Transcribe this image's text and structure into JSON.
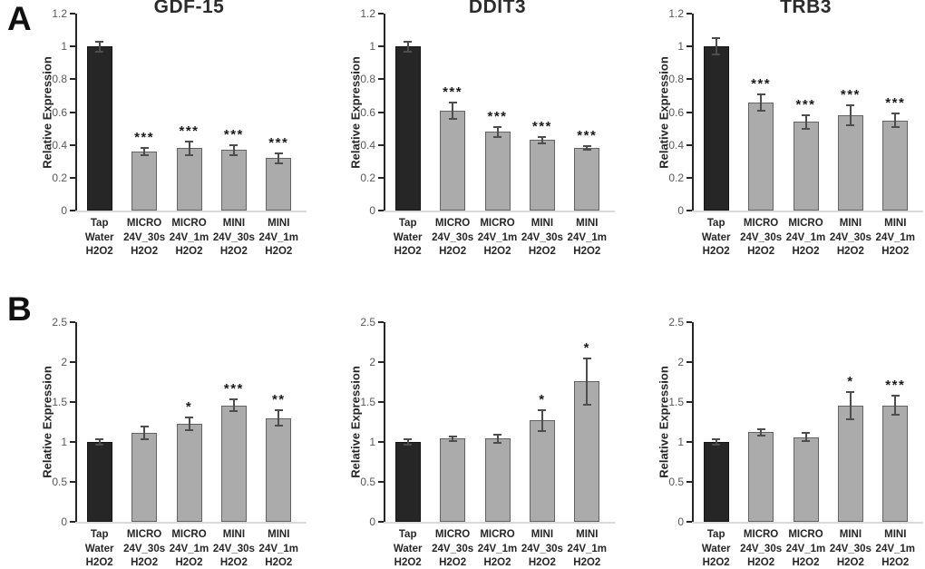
{
  "figure": {
    "panels": [
      {
        "label": "A"
      },
      {
        "label": "B"
      }
    ]
  },
  "styles": {
    "control_bar_color": "#262626",
    "treatment_bar_color": "#ababab",
    "treatment_bar_border": "#636363",
    "error_bar_color": "#4d4d4d",
    "axis_color": "#262626",
    "baseline_color": "#d9d9d9",
    "tick_label_color": "#595959",
    "text_color": "#262626"
  },
  "chart_data": [
    {
      "panel": "A",
      "type": "bar",
      "title": "GDF-15",
      "ylabel": "Relative Expression",
      "ylim": [
        0,
        1.2
      ],
      "yticks": [
        "0",
        "0.2",
        "0.4",
        "0.6",
        "0.8",
        "1",
        "1.2"
      ],
      "grid": false,
      "legend": "none",
      "categories": [
        [
          "Tap",
          "Water",
          "H2O2"
        ],
        [
          "MICRO",
          "24V_30s",
          "H2O2"
        ],
        [
          "MICRO",
          "24V_1m",
          "H2O2"
        ],
        [
          "MINI",
          "24V_30s",
          "H2O2"
        ],
        [
          "MINI",
          "24V_1m",
          "H2O2"
        ]
      ],
      "values": [
        1.0,
        0.36,
        0.38,
        0.37,
        0.32
      ],
      "errors": [
        0.03,
        0.02,
        0.04,
        0.03,
        0.03
      ],
      "significance": [
        "",
        "***",
        "***",
        "***",
        "***"
      ]
    },
    {
      "panel": "A",
      "type": "bar",
      "title": "DDIT3",
      "ylabel": "Relative Expression",
      "ylim": [
        0,
        1.2
      ],
      "yticks": [
        "0",
        "0.2",
        "0.4",
        "0.6",
        "0.8",
        "1",
        "1.2"
      ],
      "grid": false,
      "legend": "none",
      "categories": [
        [
          "Tap",
          "Water",
          "H2O2"
        ],
        [
          "MICRO",
          "24V_30s",
          "H2O2"
        ],
        [
          "MICRO",
          "24V_1m",
          "H2O2"
        ],
        [
          "MINI",
          "24V_30s",
          "H2O2"
        ],
        [
          "MINI",
          "24V_1m",
          "H2O2"
        ]
      ],
      "values": [
        1.0,
        0.61,
        0.48,
        0.43,
        0.38
      ],
      "errors": [
        0.03,
        0.05,
        0.03,
        0.02,
        0.01
      ],
      "significance": [
        "",
        "***",
        "***",
        "***",
        "***"
      ]
    },
    {
      "panel": "A",
      "type": "bar",
      "title": "TRB3",
      "ylabel": "Relative Expression",
      "ylim": [
        0,
        1.2
      ],
      "yticks": [
        "0",
        "0.2",
        "0.4",
        "0.6",
        "0.8",
        "1",
        "1.2"
      ],
      "grid": false,
      "legend": "none",
      "categories": [
        [
          "Tap",
          "Water",
          "H2O2"
        ],
        [
          "MICRO",
          "24V_30s",
          "H2O2"
        ],
        [
          "MICRO",
          "24V_1m",
          "H2O2"
        ],
        [
          "MINI",
          "24V_30s",
          "H2O2"
        ],
        [
          "MINI",
          "24V_1m",
          "H2O2"
        ]
      ],
      "values": [
        1.0,
        0.66,
        0.54,
        0.58,
        0.55
      ],
      "errors": [
        0.05,
        0.05,
        0.04,
        0.06,
        0.04
      ],
      "significance": [
        "",
        "***",
        "***",
        "***",
        "***"
      ]
    },
    {
      "panel": "B",
      "type": "bar",
      "title": "",
      "ylabel": "Relative Expression",
      "ylim": [
        0,
        2.5
      ],
      "yticks": [
        "0",
        "0.5",
        "1",
        "1.5",
        "2",
        "2.5"
      ],
      "grid": false,
      "legend": "none",
      "categories": [
        [
          "Tap",
          "Water",
          "H2O2"
        ],
        [
          "MICRO",
          "24V_30s",
          "H2O2"
        ],
        [
          "MICRO",
          "24V_1m",
          "H2O2"
        ],
        [
          "MINI",
          "24V_30s",
          "H2O2"
        ],
        [
          "MINI",
          "24V_1m",
          "H2O2"
        ]
      ],
      "values": [
        1.0,
        1.11,
        1.23,
        1.46,
        1.3
      ],
      "errors": [
        0.03,
        0.08,
        0.08,
        0.07,
        0.1
      ],
      "significance": [
        "",
        "",
        "*",
        "***",
        "**"
      ]
    },
    {
      "panel": "B",
      "type": "bar",
      "title": "",
      "ylabel": "Relative Expression",
      "ylim": [
        0,
        2.5
      ],
      "yticks": [
        "0",
        "0.5",
        "1",
        "1.5",
        "2",
        "2.5"
      ],
      "grid": false,
      "legend": "none",
      "categories": [
        [
          "Tap",
          "Water",
          "H2O2"
        ],
        [
          "MICRO",
          "24V_30s",
          "H2O2"
        ],
        [
          "MICRO",
          "24V_1m",
          "H2O2"
        ],
        [
          "MINI",
          "24V_30s",
          "H2O2"
        ],
        [
          "MINI",
          "24V_1m",
          "H2O2"
        ]
      ],
      "values": [
        1.0,
        1.04,
        1.04,
        1.27,
        1.76
      ],
      "errors": [
        0.03,
        0.03,
        0.05,
        0.13,
        0.29
      ],
      "significance": [
        "",
        "",
        "",
        "*",
        "*"
      ]
    },
    {
      "panel": "B",
      "type": "bar",
      "title": "",
      "ylabel": "Relative Expression",
      "ylim": [
        0,
        2.5
      ],
      "yticks": [
        "0",
        "0.5",
        "1",
        "1.5",
        "2",
        "2.5"
      ],
      "grid": false,
      "legend": "none",
      "categories": [
        [
          "Tap",
          "Water",
          "H2O2"
        ],
        [
          "MICRO",
          "24V_30s",
          "H2O2"
        ],
        [
          "MICRO",
          "24V_1m",
          "H2O2"
        ],
        [
          "MINI",
          "24V_30s",
          "H2O2"
        ],
        [
          "MINI",
          "24V_1m",
          "H2O2"
        ]
      ],
      "values": [
        1.0,
        1.12,
        1.06,
        1.45,
        1.46
      ],
      "errors": [
        0.03,
        0.04,
        0.05,
        0.17,
        0.12
      ],
      "significance": [
        "",
        "",
        "",
        "*",
        "***"
      ]
    }
  ]
}
